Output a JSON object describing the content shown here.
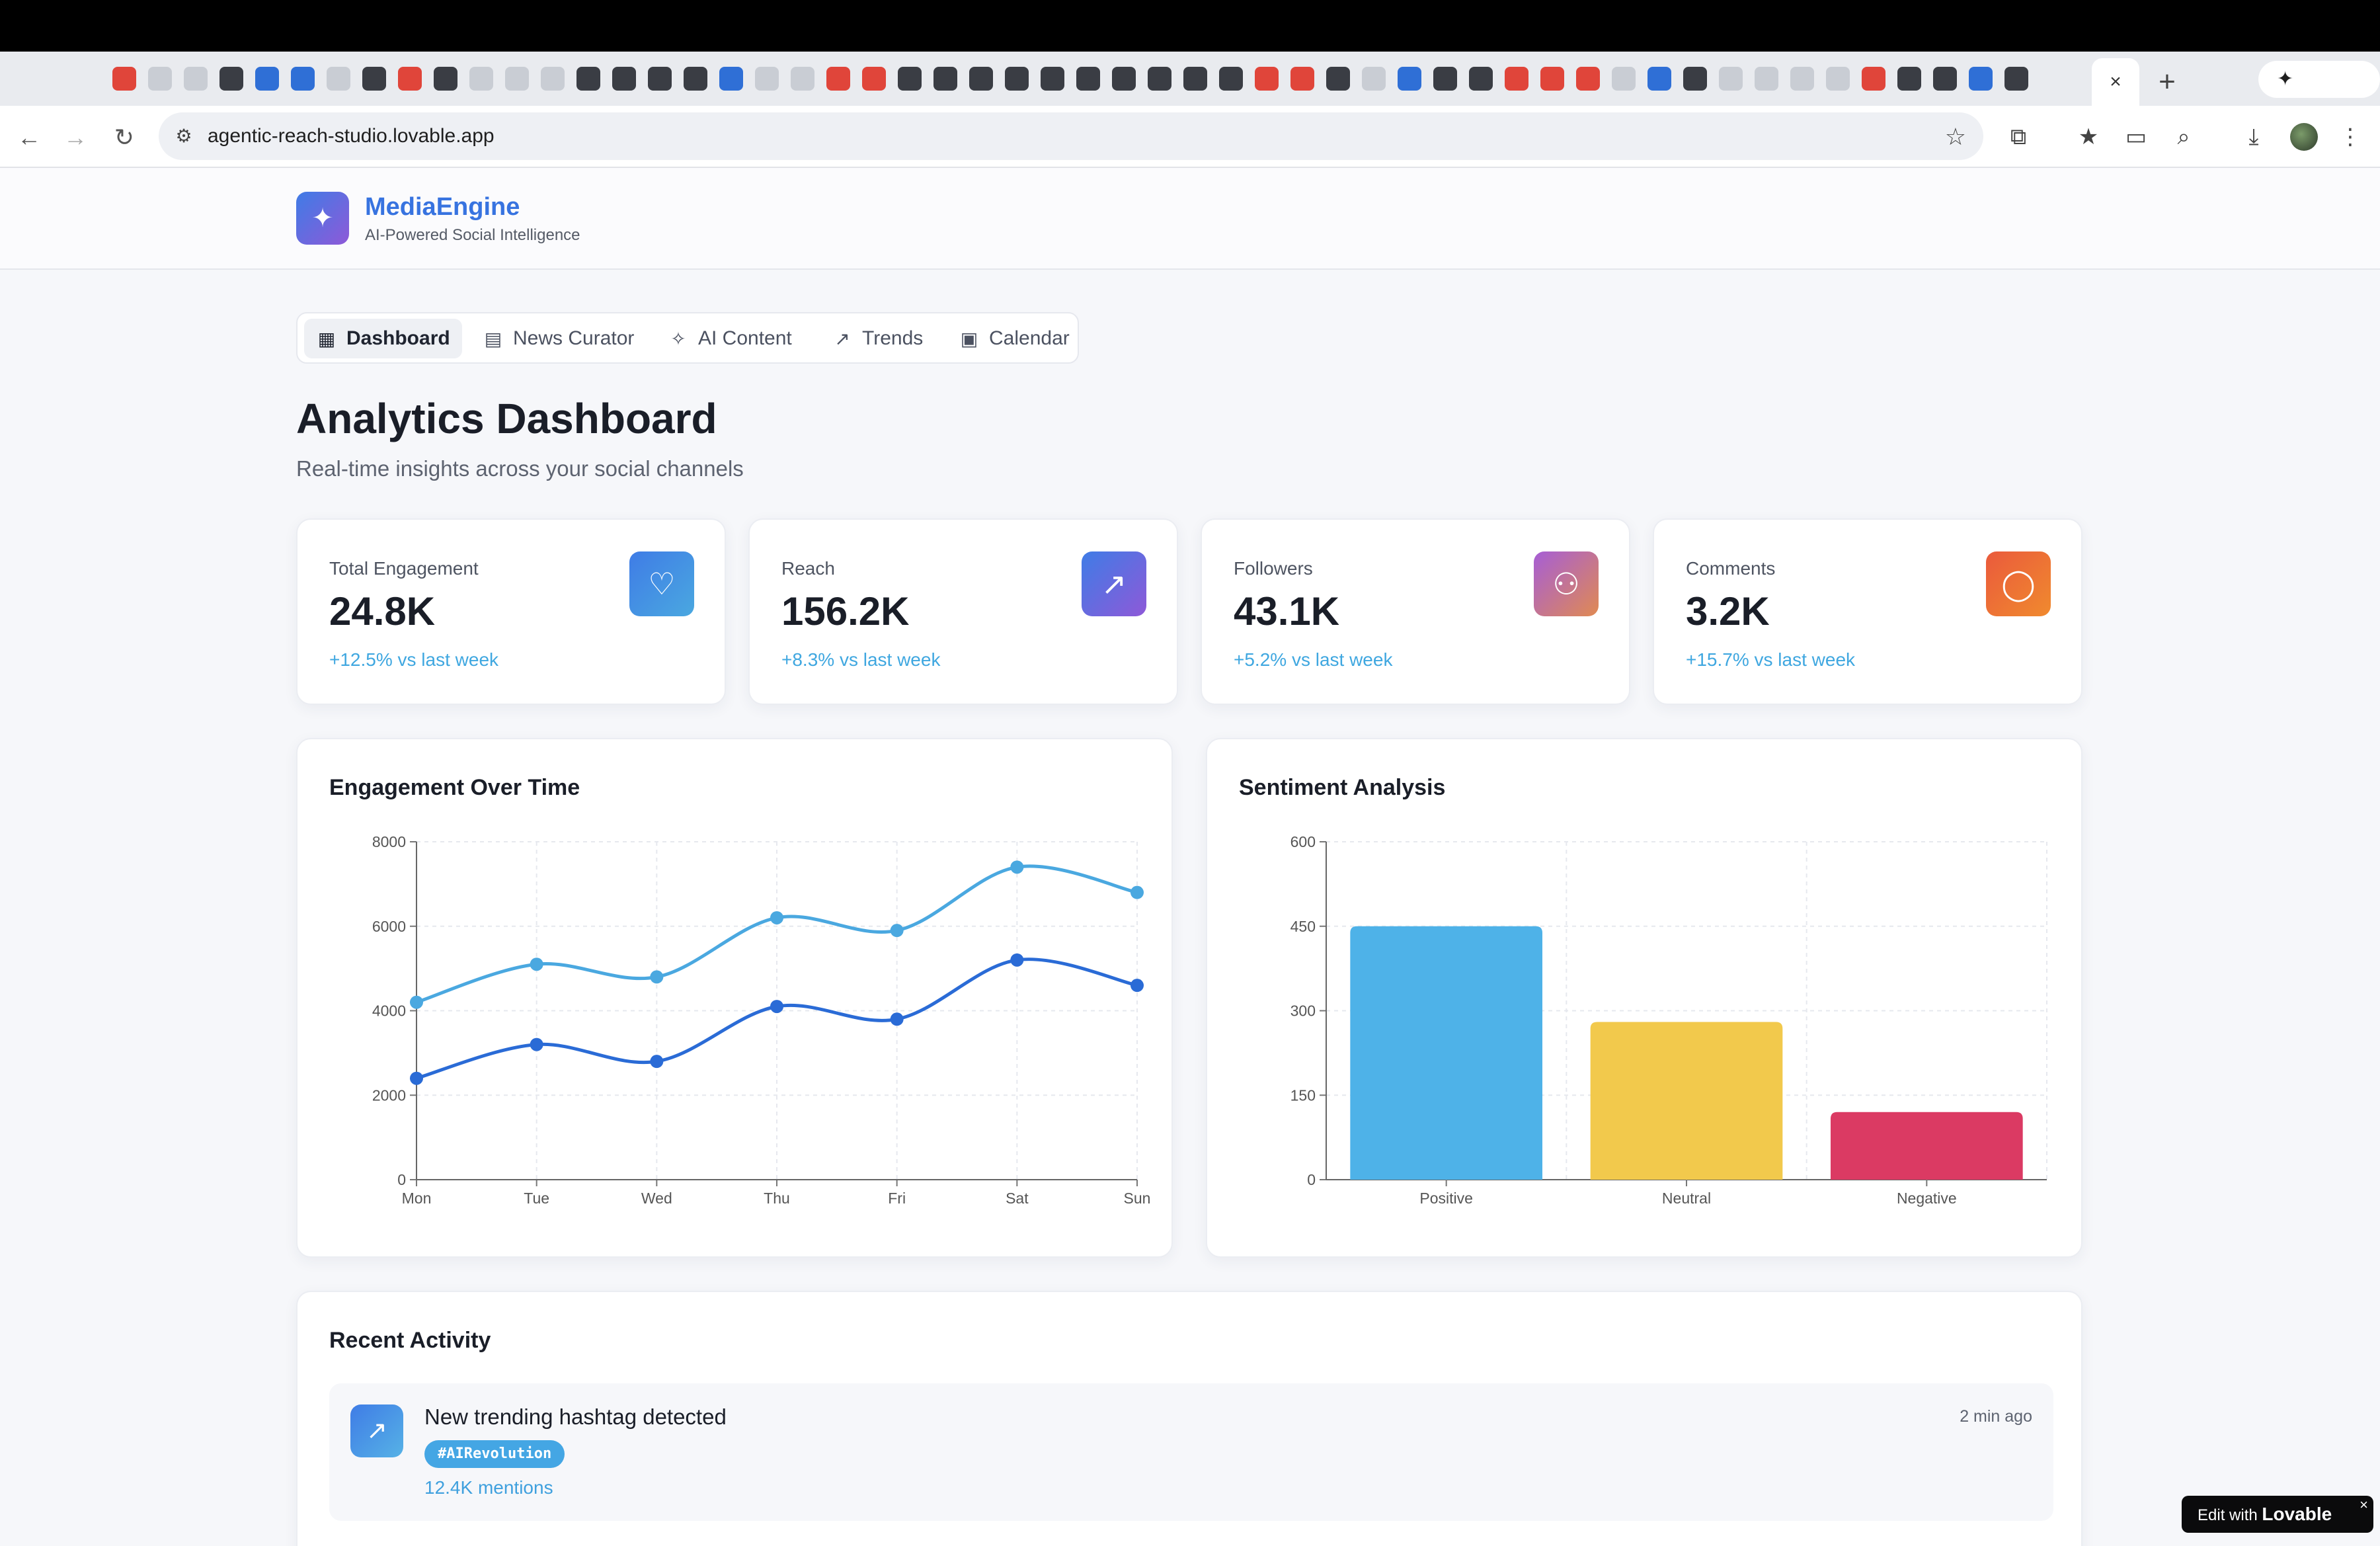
{
  "browser": {
    "url": "agentic-reach-studio.lovable.app",
    "active_tab_close": "×",
    "new_tab": "+",
    "gemini_label": "✦ Gemini"
  },
  "app": {
    "brand": "MediaEngine",
    "tagline": "AI-Powered Social Intelligence"
  },
  "nav": {
    "tabs": [
      {
        "label": "Dashboard",
        "icon": "grid-icon",
        "active": true
      },
      {
        "label": "News Curator",
        "icon": "newspaper-icon",
        "active": false
      },
      {
        "label": "AI Content",
        "icon": "sparkles-icon",
        "active": false
      },
      {
        "label": "Trends",
        "icon": "trending-up-icon",
        "active": false
      },
      {
        "label": "Calendar",
        "icon": "calendar-icon",
        "active": false
      }
    ]
  },
  "page": {
    "title": "Analytics Dashboard",
    "subtitle": "Real-time insights across your social channels"
  },
  "stats": [
    {
      "label": "Total Engagement",
      "value": "24.8K",
      "change": "+12.5% vs last week",
      "icon": "heart-icon",
      "color": "#3a86e0"
    },
    {
      "label": "Reach",
      "value": "156.2K",
      "change": "+8.3% vs last week",
      "icon": "trending-up-icon",
      "color": "#7a5fd9"
    },
    {
      "label": "Followers",
      "value": "43.1K",
      "change": "+5.2% vs last week",
      "icon": "users-icon",
      "color": "#c65fa6"
    },
    {
      "label": "Comments",
      "value": "3.2K",
      "change": "+15.7% vs last week",
      "icon": "message-circle-icon",
      "color": "#ea5a3c"
    }
  ],
  "chart_data": [
    {
      "type": "line",
      "title": "Engagement Over Time",
      "categories": [
        "Mon",
        "Tue",
        "Wed",
        "Thu",
        "Fri",
        "Sat",
        "Sun"
      ],
      "series": [
        {
          "values": [
            4200,
            5100,
            4800,
            6200,
            5900,
            7400,
            6800
          ],
          "color": "#4aa8e0"
        },
        {
          "values": [
            2400,
            3200,
            2800,
            4100,
            3800,
            5200,
            4600
          ],
          "color": "#2a6bd6"
        }
      ],
      "ylim": [
        0,
        8000
      ],
      "yticks": [
        0,
        2000,
        4000,
        6000,
        8000
      ],
      "grid": true
    },
    {
      "type": "bar",
      "title": "Sentiment Analysis",
      "categories": [
        "Positive",
        "Neutral",
        "Negative"
      ],
      "values": [
        450,
        280,
        120
      ],
      "colors": [
        "#4eb2e8",
        "#f2c94c",
        "#db3a63"
      ],
      "ylim": [
        0,
        600
      ],
      "yticks": [
        0,
        150,
        300,
        450,
        600
      ],
      "grid": true
    }
  ],
  "activity": {
    "title": "Recent Activity",
    "items": [
      {
        "title": "New trending hashtag detected",
        "tag": "#AIRevolution",
        "detail": "12.4K mentions",
        "time": "2 min ago",
        "icon": "trending-up-icon"
      }
    ]
  },
  "lovable": {
    "prefix": "Edit with",
    "brand": "Lovable",
    "close": "×"
  }
}
